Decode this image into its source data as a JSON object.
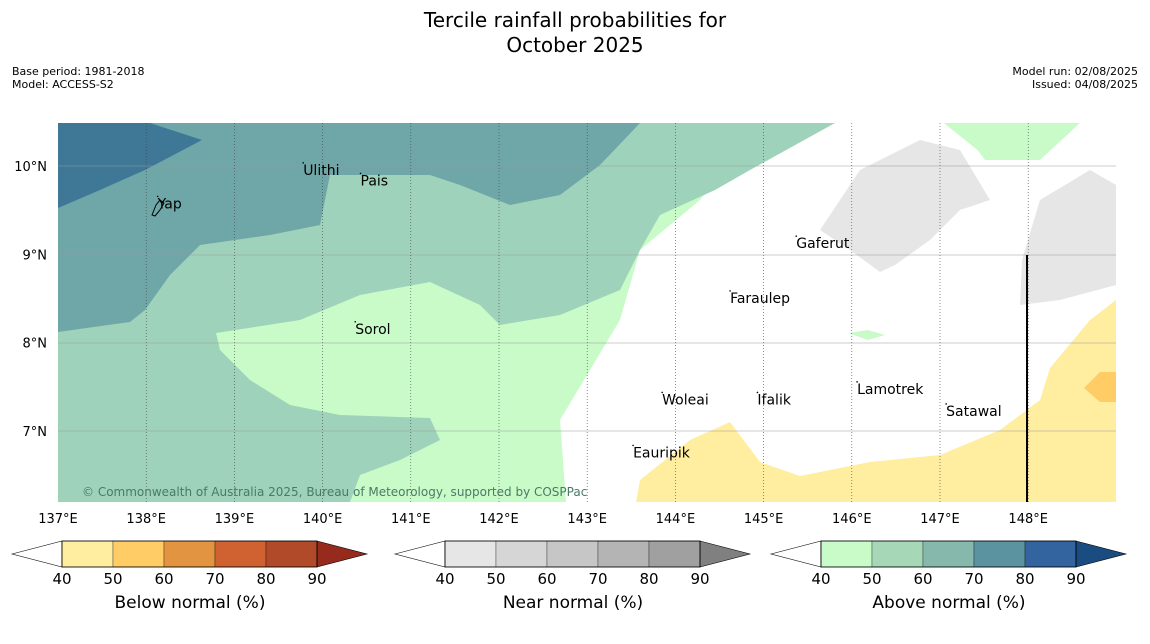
{
  "header": {
    "title_line1": "Tercile rainfall probabilities for",
    "title_line2": "October 2025",
    "base_period": "Base period: 1981-2018",
    "model": "Model: ACCESS-S2",
    "model_run": "Model run: 02/08/2025",
    "issued": "Issued: 04/08/2025"
  },
  "map": {
    "lon_ticks": [
      "137°E",
      "138°E",
      "139°E",
      "140°E",
      "141°E",
      "142°E",
      "143°E",
      "144°E",
      "145°E",
      "146°E",
      "147°E",
      "148°E"
    ],
    "lat_ticks": [
      "10°N",
      "9°N",
      "8°N",
      "7°N"
    ],
    "places": [
      {
        "name": "Ulithi",
        "lon": 139.78,
        "lat": 9.9
      },
      {
        "name": "Pais",
        "lon": 140.43,
        "lat": 9.78
      },
      {
        "name": "Yap",
        "lon": 138.13,
        "lat": 9.52
      },
      {
        "name": "Gaferut",
        "lon": 145.37,
        "lat": 9.07
      },
      {
        "name": "Faraulep",
        "lon": 144.62,
        "lat": 8.45
      },
      {
        "name": "Sorol",
        "lon": 140.37,
        "lat": 8.1
      },
      {
        "name": "Lamotrek",
        "lon": 146.06,
        "lat": 7.42
      },
      {
        "name": "Woleai",
        "lon": 143.85,
        "lat": 7.3
      },
      {
        "name": "Ifalik",
        "lon": 144.93,
        "lat": 7.3
      },
      {
        "name": "Satawal",
        "lon": 147.07,
        "lat": 7.17
      },
      {
        "name": "Eauripik",
        "lon": 143.52,
        "lat": 6.7
      }
    ],
    "copyright": "© Commonwealth of Australia 2025, Bureau of Meteorology, supported by COSPPac"
  },
  "legends": [
    {
      "label": "Below normal (%)",
      "ticks": [
        "40",
        "50",
        "60",
        "70",
        "80",
        "90"
      ],
      "colors": [
        "#ffffff",
        "#ffeea0",
        "#ffcc66",
        "#e29440",
        "#cf6230",
        "#b14a28",
        "#952a1d"
      ]
    },
    {
      "label": "Near normal (%)",
      "ticks": [
        "40",
        "50",
        "60",
        "70",
        "80",
        "90"
      ],
      "colors": [
        "#ffffff",
        "#e6e6e6",
        "#d6d6d6",
        "#c6c6c6",
        "#b4b4b4",
        "#a0a0a0",
        "#808080"
      ]
    },
    {
      "label": "Above normal (%)",
      "ticks": [
        "40",
        "50",
        "60",
        "70",
        "80",
        "90"
      ],
      "colors": [
        "#ffffff",
        "#c9fbc9",
        "#a6d8b7",
        "#86b9ab",
        "#5c93a0",
        "#3364a0",
        "#1a4c82"
      ]
    }
  ]
}
